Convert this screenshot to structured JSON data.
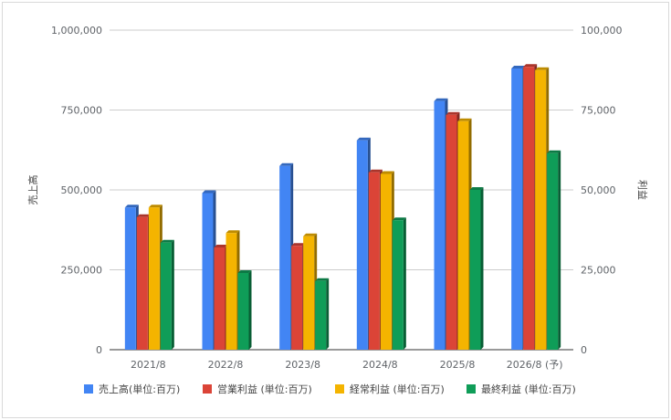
{
  "chart_data": {
    "type": "bar",
    "title": "",
    "categories": [
      "2021/8",
      "2022/8",
      "2023/8",
      "2024/8",
      "2025/8",
      "2026/8 (予)"
    ],
    "y_left": {
      "label": "売上高",
      "range": [
        0,
        1000000
      ],
      "ticks": [
        0,
        250000,
        500000,
        750000,
        1000000
      ],
      "tick_labels": [
        "0",
        "250,000",
        "500,000",
        "750,000",
        "1,000,000"
      ]
    },
    "y_right": {
      "label": "利益",
      "range": [
        0,
        100000
      ],
      "ticks": [
        0,
        25000,
        50000,
        75000,
        100000
      ],
      "tick_labels": [
        "0",
        "25,000",
        "50,000",
        "75,000",
        "100,000"
      ]
    },
    "series": [
      {
        "name": "売上高(単位:百万)",
        "axis": "left",
        "color": "#4285f4",
        "values": [
          445000,
          490000,
          575000,
          655000,
          778000,
          880000
        ]
      },
      {
        "name": "営業利益 (単位:百万)",
        "axis": "right",
        "color": "#db4437",
        "values": [
          41500,
          32000,
          32500,
          55500,
          73500,
          88500
        ]
      },
      {
        "name": "経常利益 (単位:百万)",
        "axis": "right",
        "color": "#f4b400",
        "values": [
          44500,
          36500,
          35500,
          55000,
          71500,
          87500
        ]
      },
      {
        "name": "最終利益 (単位:百万)",
        "axis": "right",
        "color": "#0f9d58",
        "values": [
          33500,
          24000,
          21500,
          40500,
          50000,
          61500
        ]
      }
    ],
    "grid": true,
    "legend_position": "bottom"
  }
}
